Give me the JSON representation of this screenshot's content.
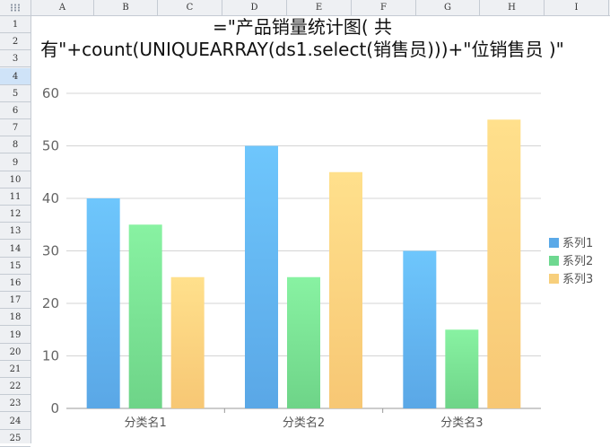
{
  "sheet": {
    "columns": [
      "A",
      "B",
      "C",
      "D",
      "E",
      "F",
      "G",
      "H",
      "I"
    ],
    "rows": [
      "1",
      "2",
      "3",
      "4",
      "5",
      "6",
      "7",
      "8",
      "9",
      "10",
      "11",
      "12",
      "13",
      "14",
      "15",
      "16",
      "17",
      "18",
      "19",
      "20",
      "21",
      "22",
      "23",
      "24",
      "25"
    ],
    "selected_row": "4"
  },
  "chart_data": {
    "type": "bar",
    "title": "=\"产品销量统计图( 共有\"+count(UNIQUEARRAY(ds1.select(销售员)))+\"位销售员 )\"",
    "categories": [
      "分类名1",
      "分类名2",
      "分类名3"
    ],
    "series": [
      {
        "name": "系列1",
        "values": [
          40,
          50,
          30
        ],
        "color_top": "#6ec6fc",
        "color_bottom": "#5aa7e6"
      },
      {
        "name": "系列2",
        "values": [
          35,
          25,
          15
        ],
        "color_top": "#88f2a2",
        "color_bottom": "#6ed488"
      },
      {
        "name": "系列3",
        "values": [
          25,
          45,
          55
        ],
        "color_top": "#ffe08c",
        "color_bottom": "#f7c774"
      }
    ],
    "yticks": [
      "0",
      "10",
      "20",
      "30",
      "40",
      "50",
      "60"
    ],
    "ylim": [
      0,
      60
    ],
    "grid": true,
    "legend_position": "right",
    "legend_colors": [
      "#5aa9e8",
      "#6ed890",
      "#f7cf7c"
    ]
  }
}
